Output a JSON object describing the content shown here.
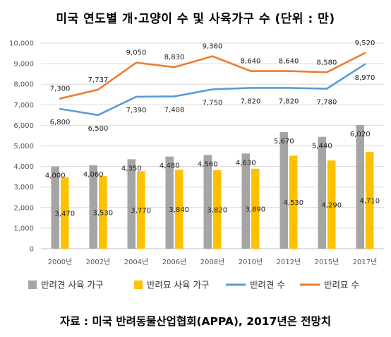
{
  "title": "미국 연도별 개·고양이 수 및 사육가구 수 (단위 : 만)",
  "source": "자료 : 미국 반려동물산업협회(APPA), 2017년은 전망치",
  "chart_data": {
    "type": "bar",
    "categories": [
      "2000년",
      "2002년",
      "2004년",
      "2006년",
      "2008년",
      "2010년",
      "2012년",
      "2015년",
      "2017년"
    ],
    "ylim": [
      0,
      10000
    ],
    "yticks": [
      0,
      1000,
      2000,
      3000,
      4000,
      5000,
      6000,
      7000,
      8000,
      9000,
      10000
    ],
    "ytick_labels": [
      "0",
      "1,000",
      "2,000",
      "3,000",
      "4,000",
      "5,000",
      "6,000",
      "7,000",
      "8,000",
      "9,000",
      "10,000"
    ],
    "grid": true,
    "legend_position": "bottom",
    "series": [
      {
        "name": "반려견 사육 가구",
        "type": "bar",
        "color": "#a5a5a5",
        "values": [
          4000,
          4060,
          4350,
          4480,
          4560,
          4630,
          5670,
          5440,
          6020
        ],
        "labels": [
          "4,000",
          "4,060",
          "4,350",
          "4,480",
          "4,560",
          "4,630",
          "5,670",
          "5,440",
          "6,020"
        ]
      },
      {
        "name": "반려묘 사육 가구",
        "type": "bar",
        "color": "#ffc000",
        "values": [
          3470,
          3530,
          3770,
          3840,
          3820,
          3890,
          4530,
          4290,
          4710
        ],
        "labels": [
          "3,470",
          "3,530",
          "3,770",
          "3,840",
          "3,820",
          "3,890",
          "4,530",
          "4,290",
          "4,710"
        ]
      },
      {
        "name": "반려견 수",
        "type": "line",
        "color": "#5b9bd5",
        "values": [
          6800,
          6500,
          7390,
          7408,
          7750,
          7820,
          7820,
          7780,
          8970
        ],
        "labels": [
          "6,800",
          "6,500",
          "7,390",
          "7,408",
          "7,750",
          "7,820",
          "7,820",
          "7,780",
          "8,970"
        ]
      },
      {
        "name": "반려묘 수",
        "type": "line",
        "color": "#ed7d31",
        "values": [
          7300,
          7737,
          9050,
          8830,
          9360,
          8640,
          8640,
          8580,
          9520
        ],
        "labels": [
          "7,300",
          "7,737",
          "9,050",
          "8,830",
          "9,360",
          "8,640",
          "8,640",
          "8,580",
          "9,520"
        ]
      }
    ]
  }
}
